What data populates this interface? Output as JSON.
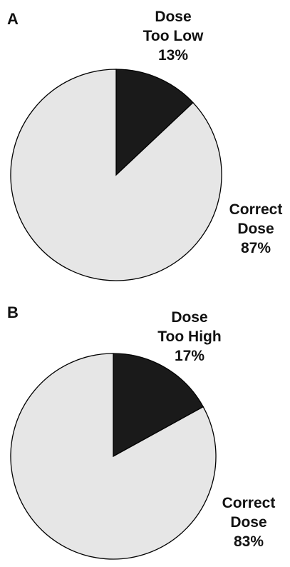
{
  "chart_data": [
    {
      "type": "pie",
      "panel": "A",
      "slices": [
        {
          "label_lines": [
            "Dose",
            "Too Low"
          ],
          "value": 13,
          "value_text": "13%",
          "color": "#1a1a1a"
        },
        {
          "label_lines": [
            "Correct",
            "Dose"
          ],
          "value": 87,
          "value_text": "87%",
          "color": "#e6e6e6"
        }
      ]
    },
    {
      "type": "pie",
      "panel": "B",
      "slices": [
        {
          "label_lines": [
            "Dose",
            "Too High"
          ],
          "value": 17,
          "value_text": "17%",
          "color": "#1a1a1a"
        },
        {
          "label_lines": [
            "Correct",
            "Dose"
          ],
          "value": 83,
          "value_text": "83%",
          "color": "#e6e6e6"
        }
      ]
    }
  ]
}
